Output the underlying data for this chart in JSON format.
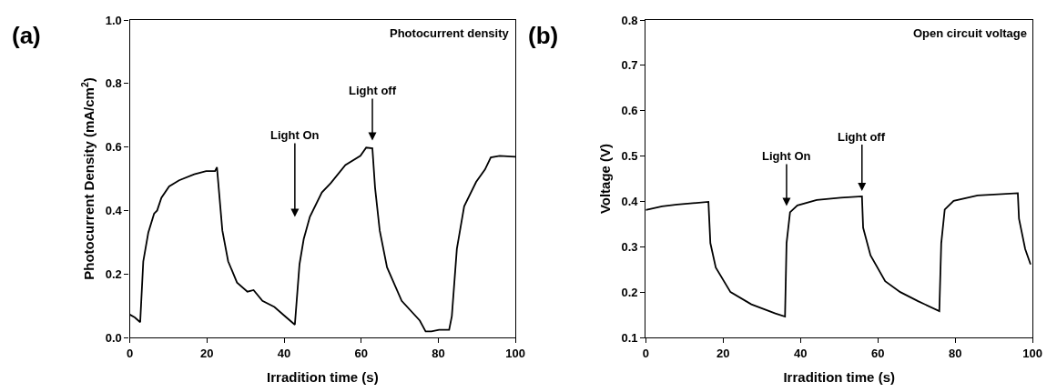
{
  "chart_data": [
    {
      "type": "line",
      "xlabel": "Irradition time (s)",
      "ylabel": "Photocurrent Density (mA/cm$^{2}$)",
      "xlim": [
        0,
        100
      ],
      "ylim": [
        0,
        1
      ],
      "xticks": [
        0,
        20,
        40,
        60,
        80,
        100
      ],
      "yticks": [
        {
          "value": 0,
          "label": "0.0"
        },
        {
          "value": 0.2,
          "label": "0.2"
        },
        {
          "value": 0.4,
          "label": "0.4"
        },
        {
          "value": 0.6,
          "label": "0.6"
        },
        {
          "value": 0.8,
          "label": "0.8"
        },
        {
          "value": 1,
          "label": "1.0"
        }
      ],
      "marker": "none",
      "line_style": "solid",
      "annotations": [
        "(a)",
        "Photocurrent density",
        "Light On",
        "Light off"
      ],
      "series": [
        {
          "color": "#000000",
          "x": [
            0,
            1.3,
            2.7,
            3.5,
            4.8,
            6.3,
            7.1,
            8.2,
            10.2,
            12.8,
            16.7,
            19.8,
            22.1,
            22.6,
            24,
            25.5,
            27.8,
            30.5,
            32.1,
            34.4,
            37.5,
            40.6,
            42.8,
            44,
            45.1,
            46.7,
            49.8,
            52.1,
            55.9,
            59.8,
            61.3,
            62.9,
            63.6,
            64.8,
            66.7,
            70.5,
            75.2,
            76.7,
            78.2,
            80.2,
            82.8,
            83.5,
            84.8,
            86.7,
            89.8,
            92.1,
            93.6,
            95.9,
            100
          ],
          "values": [
            0.072,
            0.063,
            0.048,
            0.24,
            0.33,
            0.39,
            0.4,
            0.44,
            0.476,
            0.495,
            0.514,
            0.524,
            0.524,
            0.536,
            0.337,
            0.24,
            0.173,
            0.144,
            0.149,
            0.115,
            0.096,
            0.063,
            0.04,
            0.23,
            0.31,
            0.38,
            0.457,
            0.486,
            0.543,
            0.572,
            0.598,
            0.596,
            0.471,
            0.337,
            0.221,
            0.115,
            0.053,
            0.019,
            0.019,
            0.024,
            0.024,
            0.067,
            0.279,
            0.413,
            0.49,
            0.529,
            0.567,
            0.572,
            0.569
          ]
        }
      ]
    },
    {
      "type": "line",
      "xlabel": "Irradition time (s)",
      "ylabel": "Voltage (V)",
      "xlim": [
        0,
        100
      ],
      "ylim": [
        0.1,
        0.8
      ],
      "xticks": [
        0,
        20,
        40,
        60,
        80,
        100
      ],
      "yticks": [
        0.1,
        0.2,
        0.3,
        0.4,
        0.5,
        0.6,
        0.7,
        0.8
      ],
      "marker": "none",
      "line_style": "solid",
      "annotations": [
        "(b)",
        "Open circuit voltage",
        "Light On",
        "Light off"
      ],
      "series": [
        {
          "color": "#000000",
          "x": [
            0,
            4.2,
            8.1,
            16.2,
            16.7,
            18.1,
            21.9,
            27.3,
            33.5,
            36,
            36.4,
            37.3,
            39.2,
            44.2,
            50.4,
            55.9,
            56.2,
            58.1,
            61.9,
            65.8,
            70.4,
            75.9,
            76.4,
            77.3,
            79.6,
            85.8,
            96.2,
            96.5,
            98.1,
            99.5
          ],
          "values": [
            0.381,
            0.389,
            0.393,
            0.399,
            0.308,
            0.254,
            0.2,
            0.173,
            0.153,
            0.146,
            0.308,
            0.376,
            0.391,
            0.403,
            0.408,
            0.411,
            0.342,
            0.281,
            0.224,
            0.2,
            0.18,
            0.158,
            0.308,
            0.382,
            0.401,
            0.413,
            0.418,
            0.362,
            0.295,
            0.261
          ]
        }
      ]
    }
  ]
}
